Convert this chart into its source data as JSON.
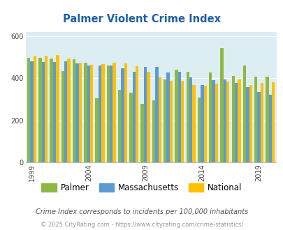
{
  "title": "Palmer Violent Crime Index",
  "years": [
    1999,
    2000,
    2001,
    2002,
    2003,
    2004,
    2005,
    2006,
    2007,
    2008,
    2009,
    2010,
    2011,
    2012,
    2013,
    2014,
    2015,
    2016,
    2017,
    2018,
    2019,
    2020
  ],
  "palmer": [
    497,
    498,
    495,
    435,
    492,
    475,
    305,
    460,
    345,
    330,
    278,
    295,
    395,
    440,
    430,
    307,
    427,
    545,
    410,
    462,
    409,
    408
  ],
  "massachusetts": [
    480,
    478,
    477,
    480,
    471,
    462,
    460,
    460,
    447,
    430,
    453,
    455,
    427,
    430,
    405,
    367,
    391,
    393,
    377,
    358,
    335,
    323
  ],
  "national": [
    507,
    509,
    510,
    494,
    475,
    463,
    469,
    474,
    470,
    458,
    430,
    405,
    387,
    387,
    368,
    366,
    373,
    386,
    395,
    369,
    379,
    380
  ],
  "palmer_color": "#8db843",
  "mass_color": "#5b9bd5",
  "national_color": "#ffc000",
  "bg_color": "#ddeef3",
  "title_color": "#1f5fa6",
  "xlabel_ticks": [
    1999,
    2004,
    2009,
    2014,
    2019
  ],
  "ylabel_ticks": [
    0,
    200,
    400,
    600
  ],
  "ylim": [
    0,
    620
  ],
  "subtitle": "Crime Index corresponds to incidents per 100,000 inhabitants",
  "footer": "© 2025 CityRating.com - https://www.cityrating.com/crime-statistics/",
  "subtitle_color": "#555555",
  "footer_color": "#999999"
}
